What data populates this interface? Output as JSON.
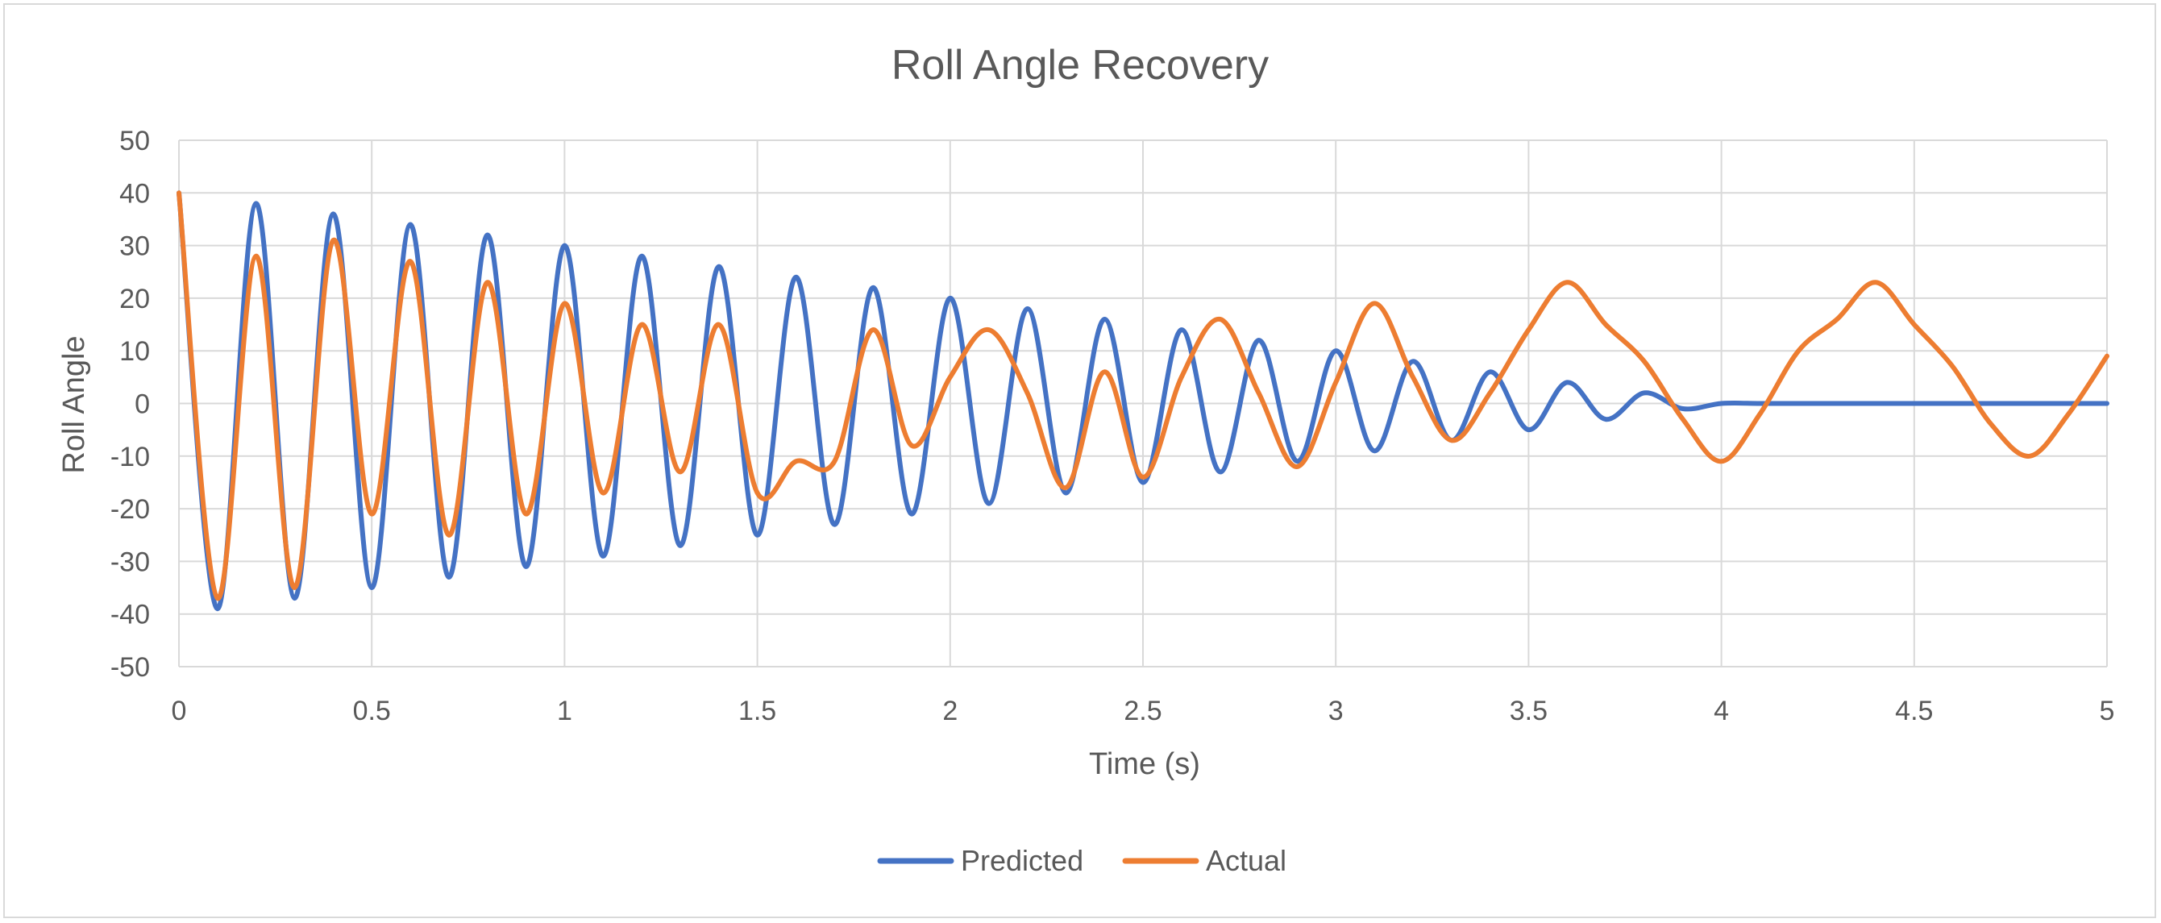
{
  "chart_data": {
    "type": "line",
    "title": "Roll Angle Recovery",
    "xlabel": "Time (s)",
    "ylabel": "Roll Angle",
    "xlim": [
      0,
      5
    ],
    "ylim": [
      -50,
      50
    ],
    "x_ticks": [
      "0",
      "0.5",
      "1",
      "1.5",
      "2",
      "2.5",
      "3",
      "3.5",
      "4",
      "4.5",
      "5"
    ],
    "y_ticks": [
      "50",
      "40",
      "30",
      "20",
      "10",
      "0",
      "-10",
      "-20",
      "-30",
      "-40",
      "-50"
    ],
    "grid": "on",
    "legend_position": "bottom",
    "series": [
      {
        "name": "Predicted",
        "color": "#4472c4",
        "x": [
          0,
          0.1,
          0.2,
          0.3,
          0.4,
          0.5,
          0.6,
          0.7,
          0.8,
          0.9,
          1.0,
          1.1,
          1.2,
          1.3,
          1.4,
          1.5,
          1.6,
          1.7,
          1.8,
          1.9,
          2.0,
          2.1,
          2.2,
          2.3,
          2.4,
          2.5,
          2.6,
          2.7,
          2.8,
          2.9,
          3.0,
          3.1,
          3.2,
          3.3,
          3.4,
          3.5,
          3.6,
          3.7,
          3.8,
          3.9,
          4.0,
          4.1,
          4.2,
          4.3,
          4.4,
          4.5,
          4.6,
          4.7,
          4.8,
          4.9,
          5.0
        ],
        "values": [
          40,
          -39,
          38,
          -37,
          36,
          -35,
          34,
          -33,
          32,
          -31,
          30,
          -29,
          28,
          -27,
          26,
          -25,
          24,
          -23,
          22,
          -21,
          20,
          -19,
          18,
          -17,
          16,
          -15,
          14,
          -13,
          12,
          -11,
          10,
          -9,
          8,
          -7,
          6,
          -5,
          4,
          -3,
          2,
          -1,
          0,
          0,
          0,
          0,
          0,
          0,
          0,
          0,
          0,
          0,
          0
        ]
      },
      {
        "name": "Actual",
        "color": "#ed7d31",
        "x": [
          0,
          0.1,
          0.2,
          0.3,
          0.4,
          0.5,
          0.6,
          0.7,
          0.8,
          0.9,
          1.0,
          1.1,
          1.2,
          1.3,
          1.4,
          1.5,
          1.6,
          1.7,
          1.8,
          1.9,
          2.0,
          2.1,
          2.2,
          2.3,
          2.4,
          2.5,
          2.6,
          2.7,
          2.8,
          2.9,
          3.0,
          3.1,
          3.2,
          3.3,
          3.4,
          3.5,
          3.6,
          3.7,
          3.8,
          3.9,
          4.0,
          4.1,
          4.2,
          4.3,
          4.4,
          4.5,
          4.6,
          4.7,
          4.8,
          4.9,
          5.0
        ],
        "values": [
          40,
          -37,
          28,
          -35,
          31,
          -21,
          27,
          -25,
          23,
          -21,
          19,
          -17,
          15,
          -13,
          15,
          -17,
          -11,
          -11,
          14,
          -8,
          5,
          14,
          2,
          -16,
          6,
          -14,
          5,
          16,
          2,
          -12,
          4,
          19,
          5,
          -7,
          2,
          14,
          23,
          15,
          8,
          -3,
          -11,
          -2,
          10,
          16,
          23,
          15,
          7,
          -4,
          -10,
          -2,
          9
        ]
      }
    ]
  }
}
